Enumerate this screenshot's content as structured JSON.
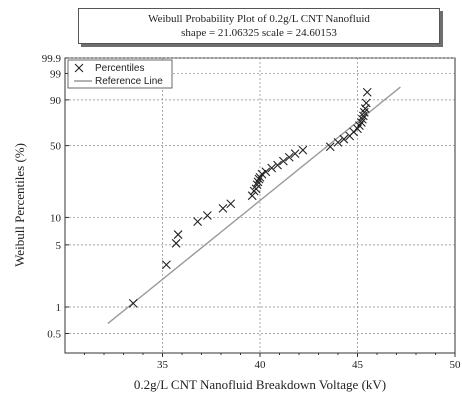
{
  "chart_data": {
    "type": "scatter",
    "title": "Weibull Probability Plot of 0.2g/L CNT Nanofluid",
    "subtitle": "shape = 21.06325  scale = 24.60153",
    "xlabel": "0.2g/L CNT Nanofluid Breakdown Voltage (kV)",
    "ylabel": "Weibull Percentiles (%)",
    "xlim": [
      30,
      50
    ],
    "ylim": [
      0.3,
      99.9
    ],
    "y_scale": "weibull-probability",
    "x_ticks": [
      "35",
      "40",
      "45",
      "50"
    ],
    "y_ticks": [
      "99.9",
      "99",
      "90",
      "50",
      "10",
      "5",
      "1",
      "0.5"
    ],
    "grid": true,
    "legend": {
      "placement": "top-left",
      "entries": [
        "Percentiles",
        "Reference Line"
      ]
    },
    "series": [
      {
        "name": "Percentiles",
        "marker": "x",
        "color": "#222222",
        "x": [
          33.5,
          35.2,
          35.7,
          35.8,
          36.8,
          37.3,
          38.1,
          38.5,
          39.6,
          39.7,
          39.8,
          39.85,
          39.9,
          39.95,
          40.0,
          40.1,
          40.3,
          40.6,
          40.9,
          41.2,
          41.5,
          41.8,
          42.2,
          43.6,
          44.0,
          44.3,
          44.6,
          44.8,
          45.0,
          45.1,
          45.2,
          45.25,
          45.3,
          45.35,
          45.4,
          45.45,
          45.5
        ],
        "y": [
          1.1,
          3,
          5.2,
          6.5,
          9,
          10.5,
          12.5,
          14,
          17,
          19,
          20,
          22,
          23.5,
          25,
          26,
          28,
          29.5,
          32,
          34,
          37,
          40,
          43,
          46,
          49,
          53,
          56,
          59,
          63,
          66,
          69,
          72,
          75,
          78,
          81,
          84,
          88,
          94
        ]
      }
    ],
    "reference_line": {
      "name": "Reference Line",
      "color": "#999999",
      "x": [
        32.2,
        47.2
      ],
      "y": [
        0.65,
        96
      ]
    }
  }
}
